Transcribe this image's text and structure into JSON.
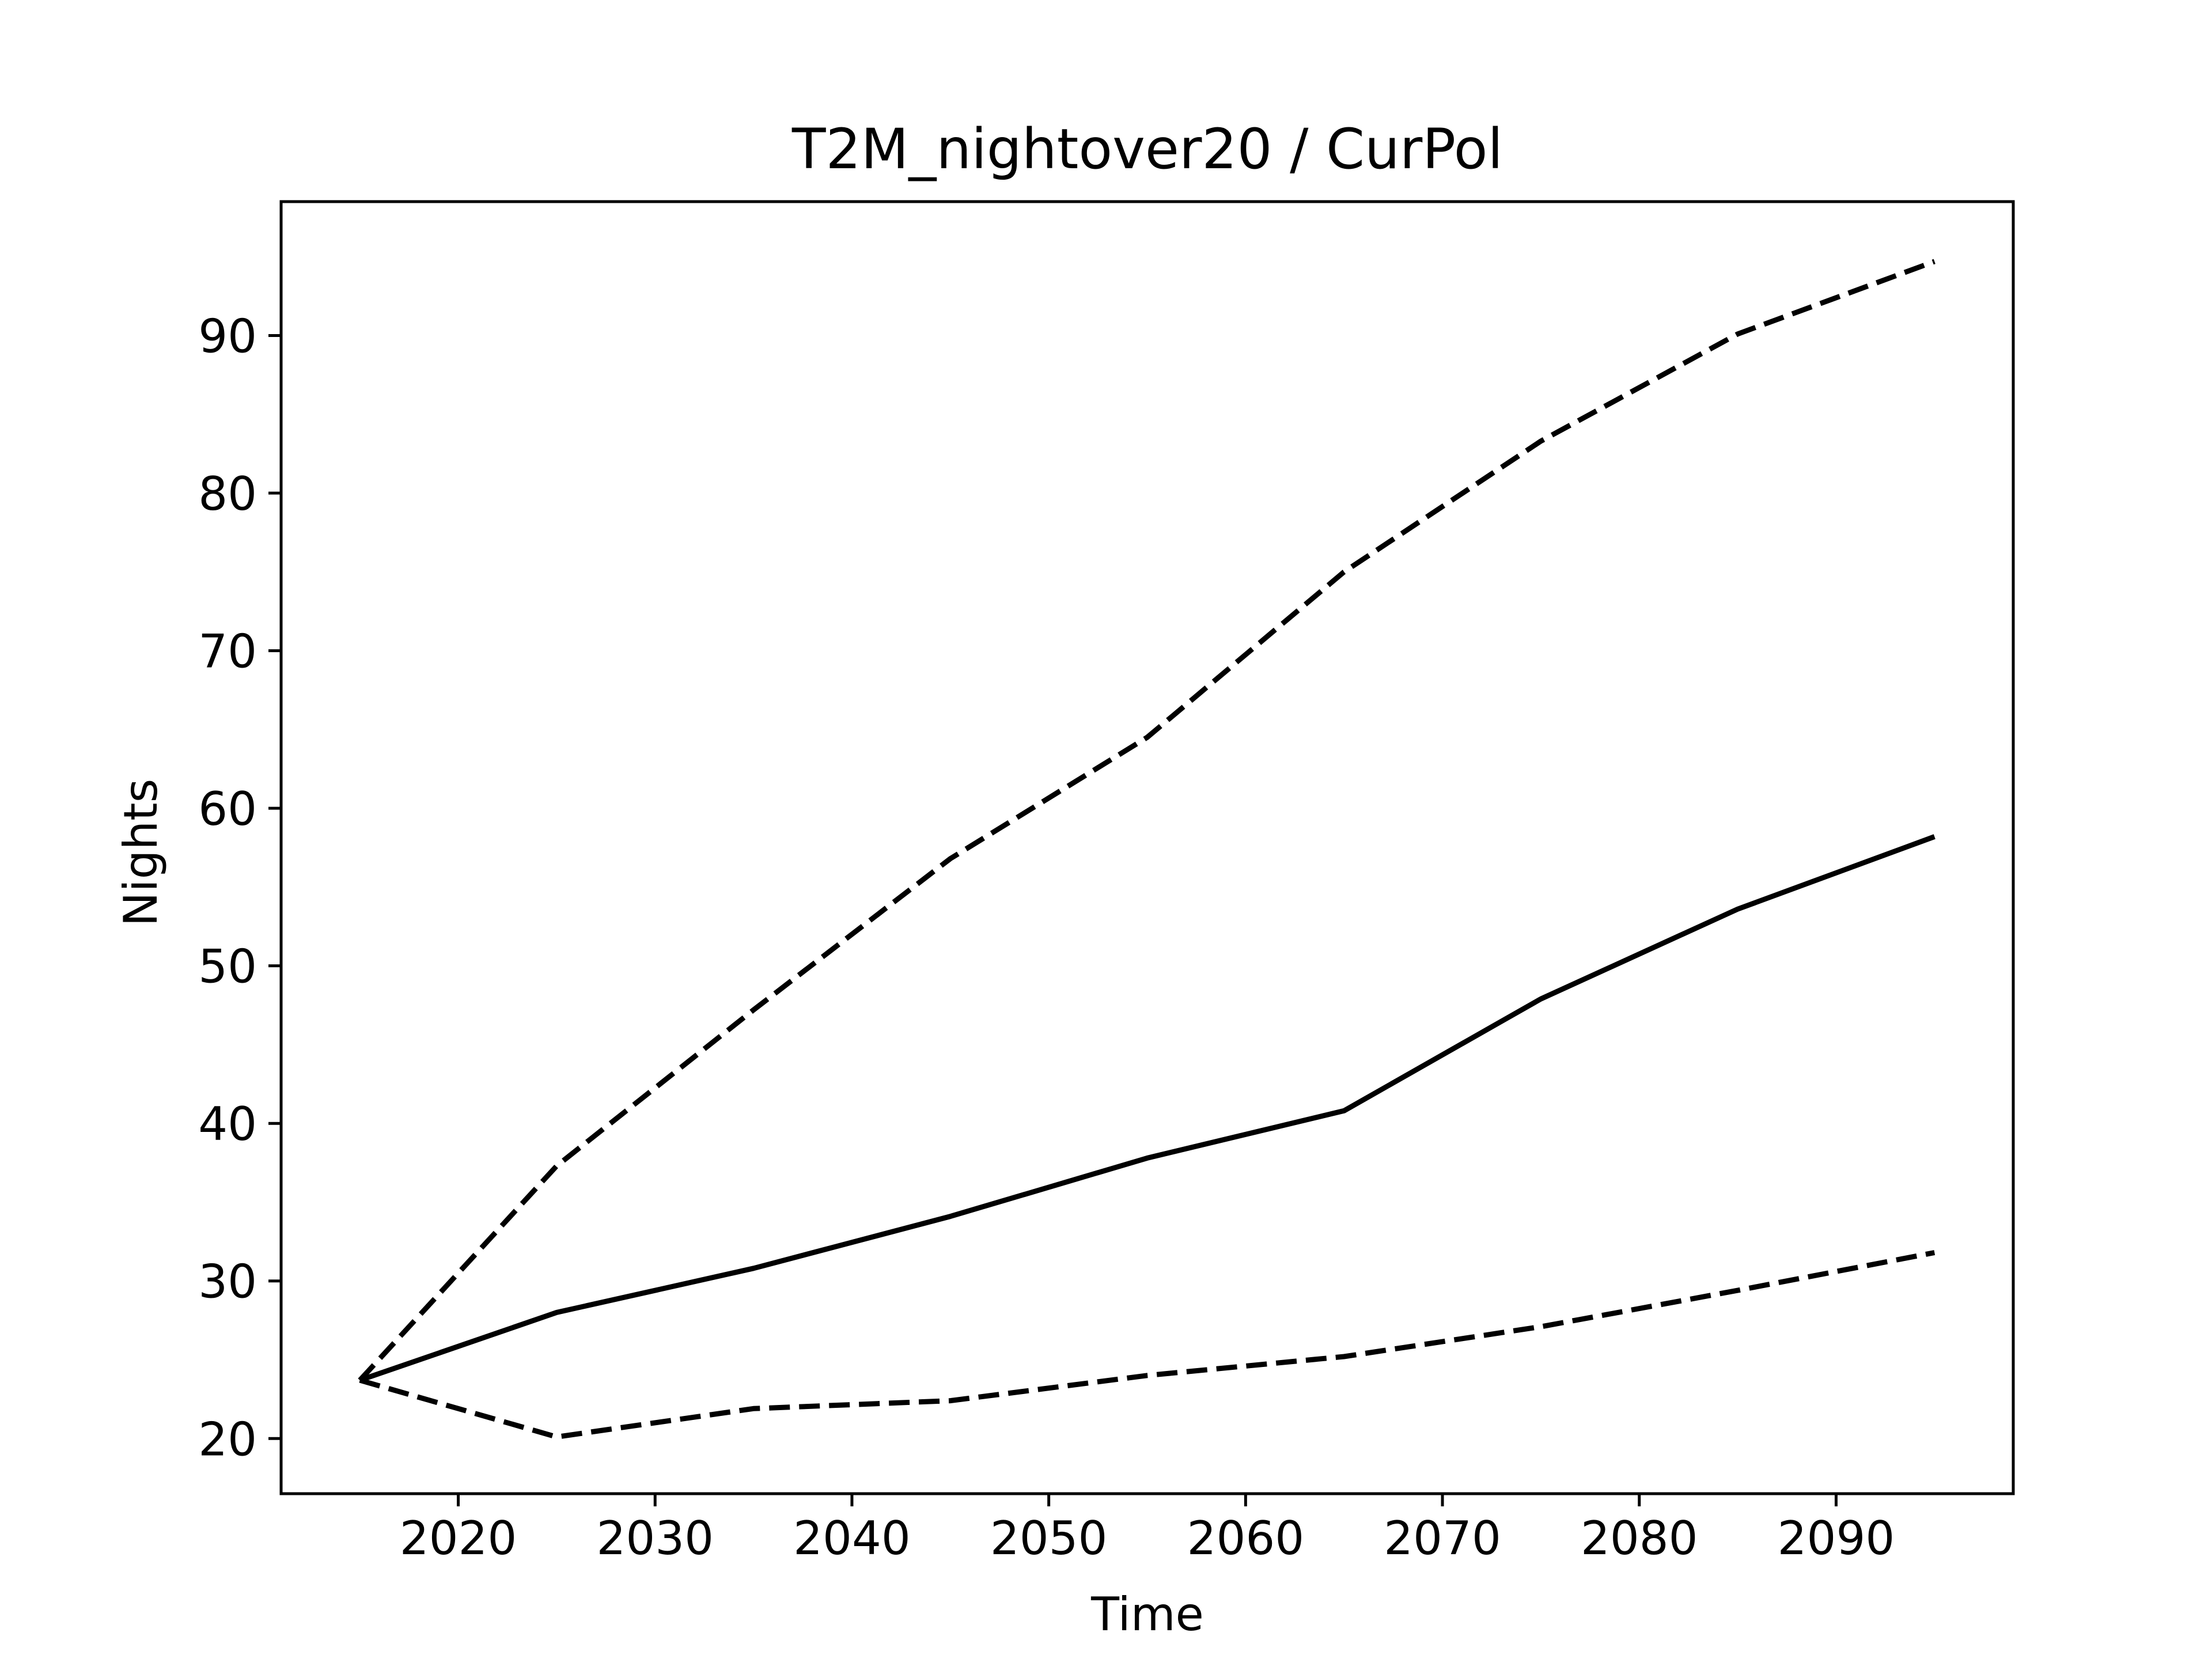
{
  "chart_data": {
    "type": "line",
    "title": "T2M_nightover20 / CurPol",
    "xlabel": "Time",
    "ylabel": "Nights",
    "x": [
      2015,
      2025,
      2035,
      2045,
      2055,
      2065,
      2075,
      2085,
      2095
    ],
    "xlim": [
      2011,
      2099
    ],
    "ylim": [
      16.5,
      98.5
    ],
    "xticks": [
      2020,
      2030,
      2040,
      2050,
      2060,
      2070,
      2080,
      2090
    ],
    "yticks": [
      20,
      30,
      40,
      50,
      60,
      70,
      80,
      90
    ],
    "grid": false,
    "legend": "none",
    "series": [
      {
        "style": "solid",
        "color": "#000000",
        "values": [
          23.7,
          28.0,
          30.8,
          34.1,
          37.8,
          40.8,
          47.9,
          53.6,
          58.2
        ]
      },
      {
        "style": "dashed",
        "color": "#000000",
        "values": [
          23.7,
          37.3,
          47.2,
          56.8,
          64.5,
          75.0,
          83.3,
          90.1,
          94.7
        ]
      },
      {
        "style": "dashed",
        "color": "#000000",
        "values": [
          23.7,
          20.1,
          21.9,
          22.4,
          24.0,
          25.2,
          27.1,
          29.4,
          31.8
        ]
      }
    ]
  }
}
